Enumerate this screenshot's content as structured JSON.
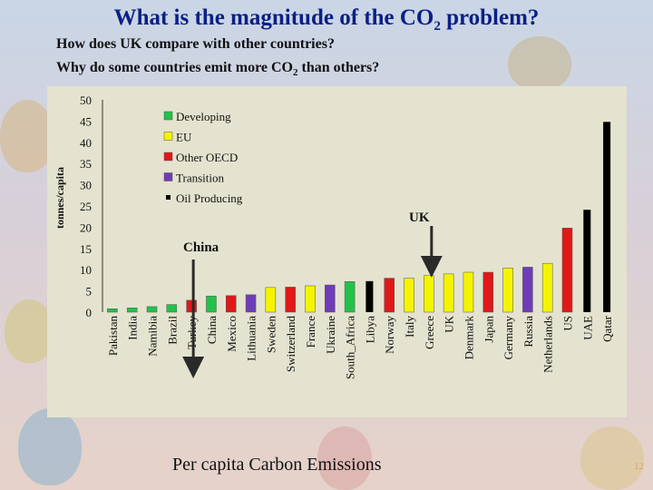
{
  "slide": {
    "title": "What is the magnitude of the CO",
    "title_sub": "2",
    "title_tail": " problem?",
    "subtitle_1": "How does UK compare with other countries?",
    "subtitle_2": "Why do some countries emit more CO",
    "subtitle_2_sub": "2",
    "subtitle_2_tail": " than others?",
    "chart_title": "Per capita Carbon Emissions",
    "page_number": "12"
  },
  "colors": {
    "Developing": "#22c24a",
    "EU": "#f4f400",
    "Other OECD": "#e01818",
    "Transition": "#6e3cb8",
    "Oil Producing": "#000000",
    "background": "#e4e3cf",
    "title": "#0b1f86"
  },
  "chart_data": {
    "type": "bar",
    "ylabel": "tonnes/capita",
    "ylim": [
      0,
      50
    ],
    "yticks": [
      0,
      5,
      10,
      15,
      20,
      25,
      30,
      35,
      40,
      45,
      50
    ],
    "legend_position": "top-left",
    "categories": [
      "Pakistan",
      "India",
      "Namibia",
      "Brazil",
      "Turkey",
      "China",
      "Mexico",
      "Lithuania",
      "Sweden",
      "Switzerland",
      "France",
      "Ukraine",
      "South_Africa",
      "Libya",
      "Norway",
      "Italy",
      "Greece",
      "UK",
      "Denmark",
      "Japan",
      "Germany",
      "Russia",
      "Netherlands",
      "US",
      "UAE",
      "Qatar"
    ],
    "values": [
      0.8,
      1.0,
      1.3,
      1.8,
      2.8,
      3.8,
      3.9,
      4.1,
      5.8,
      5.9,
      6.2,
      6.4,
      7.2,
      7.3,
      8.0,
      8.0,
      8.6,
      9.0,
      9.4,
      9.4,
      10.4,
      10.6,
      11.5,
      19.8,
      24.1,
      44.8
    ],
    "groups": [
      "Developing",
      "Developing",
      "Developing",
      "Developing",
      "Other OECD",
      "Developing",
      "Other OECD",
      "Transition",
      "EU",
      "Other OECD",
      "EU",
      "Transition",
      "Developing",
      "Oil Producing",
      "Other OECD",
      "EU",
      "EU",
      "EU",
      "EU",
      "Other OECD",
      "EU",
      "Transition",
      "EU",
      "Other OECD",
      "Oil Producing",
      "Oil Producing"
    ],
    "legend": [
      "Developing",
      "EU",
      "Other OECD",
      "Transition",
      "Oil Producing"
    ],
    "annotations": [
      {
        "text": "China",
        "category": "China"
      },
      {
        "text": "UK",
        "category": "UK"
      }
    ]
  }
}
